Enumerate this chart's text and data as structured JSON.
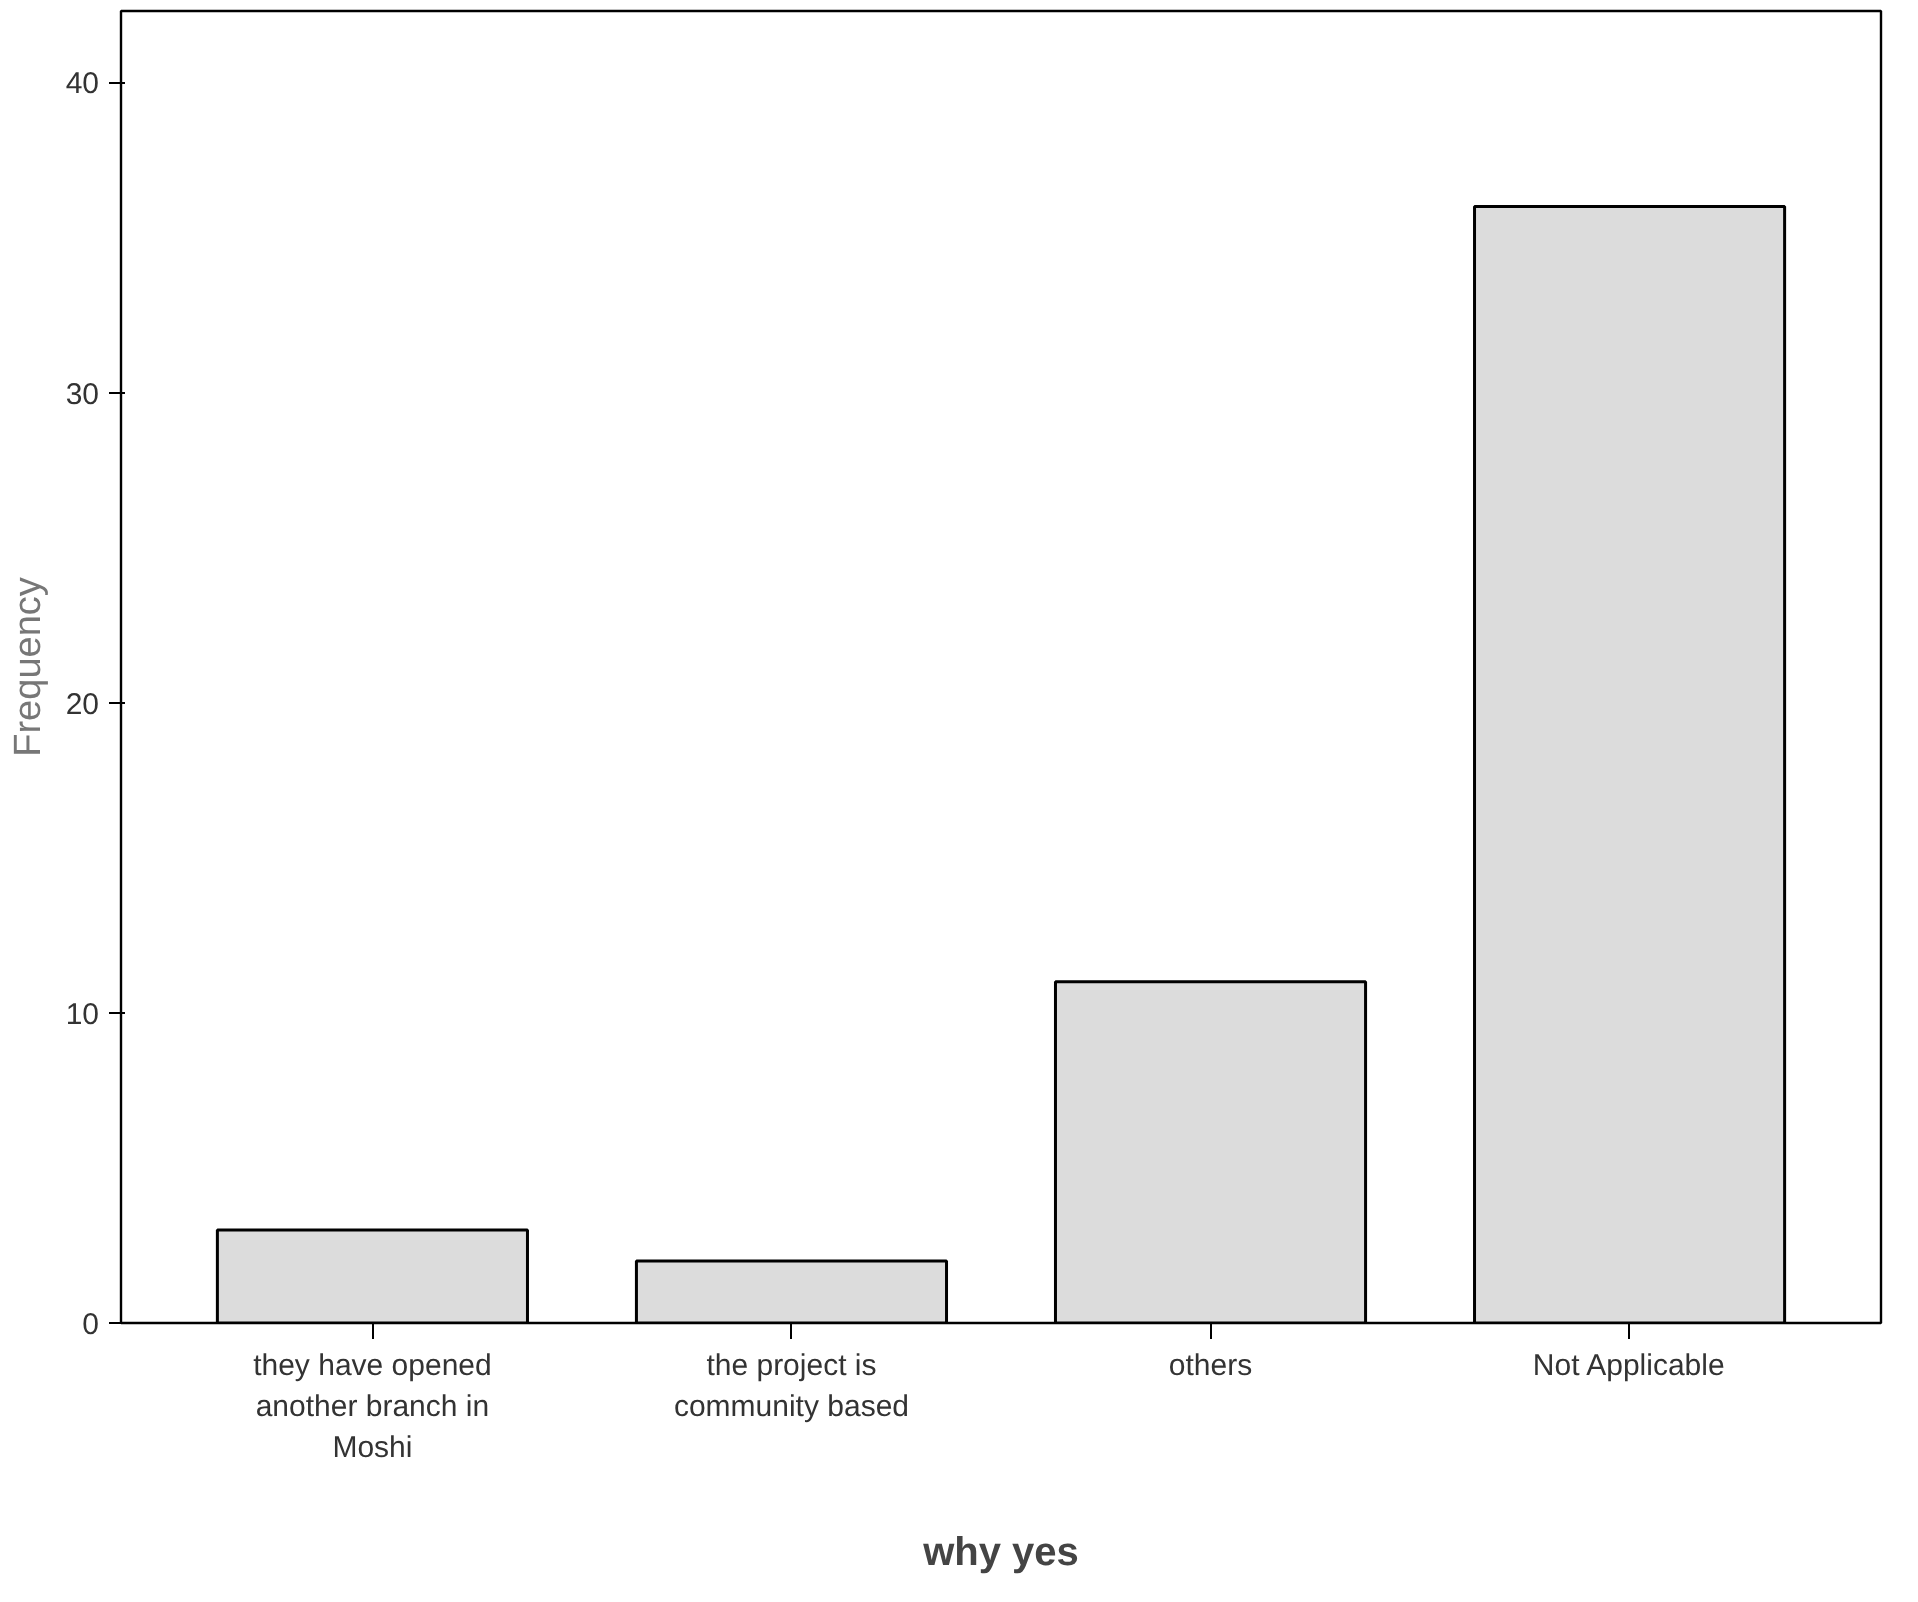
{
  "chart_data": {
    "type": "bar",
    "xlabel": "why yes",
    "ylabel": "Frequency",
    "categories": [
      "they have opened another branch in Moshi",
      "the project is community based",
      "others",
      "Not Applicable"
    ],
    "values": [
      3,
      2,
      11,
      36
    ],
    "color": "#dcdcdc",
    "ylim": [
      0,
      42.3
    ],
    "yticks": [
      0,
      10,
      20,
      30,
      40
    ],
    "grid": false
  }
}
